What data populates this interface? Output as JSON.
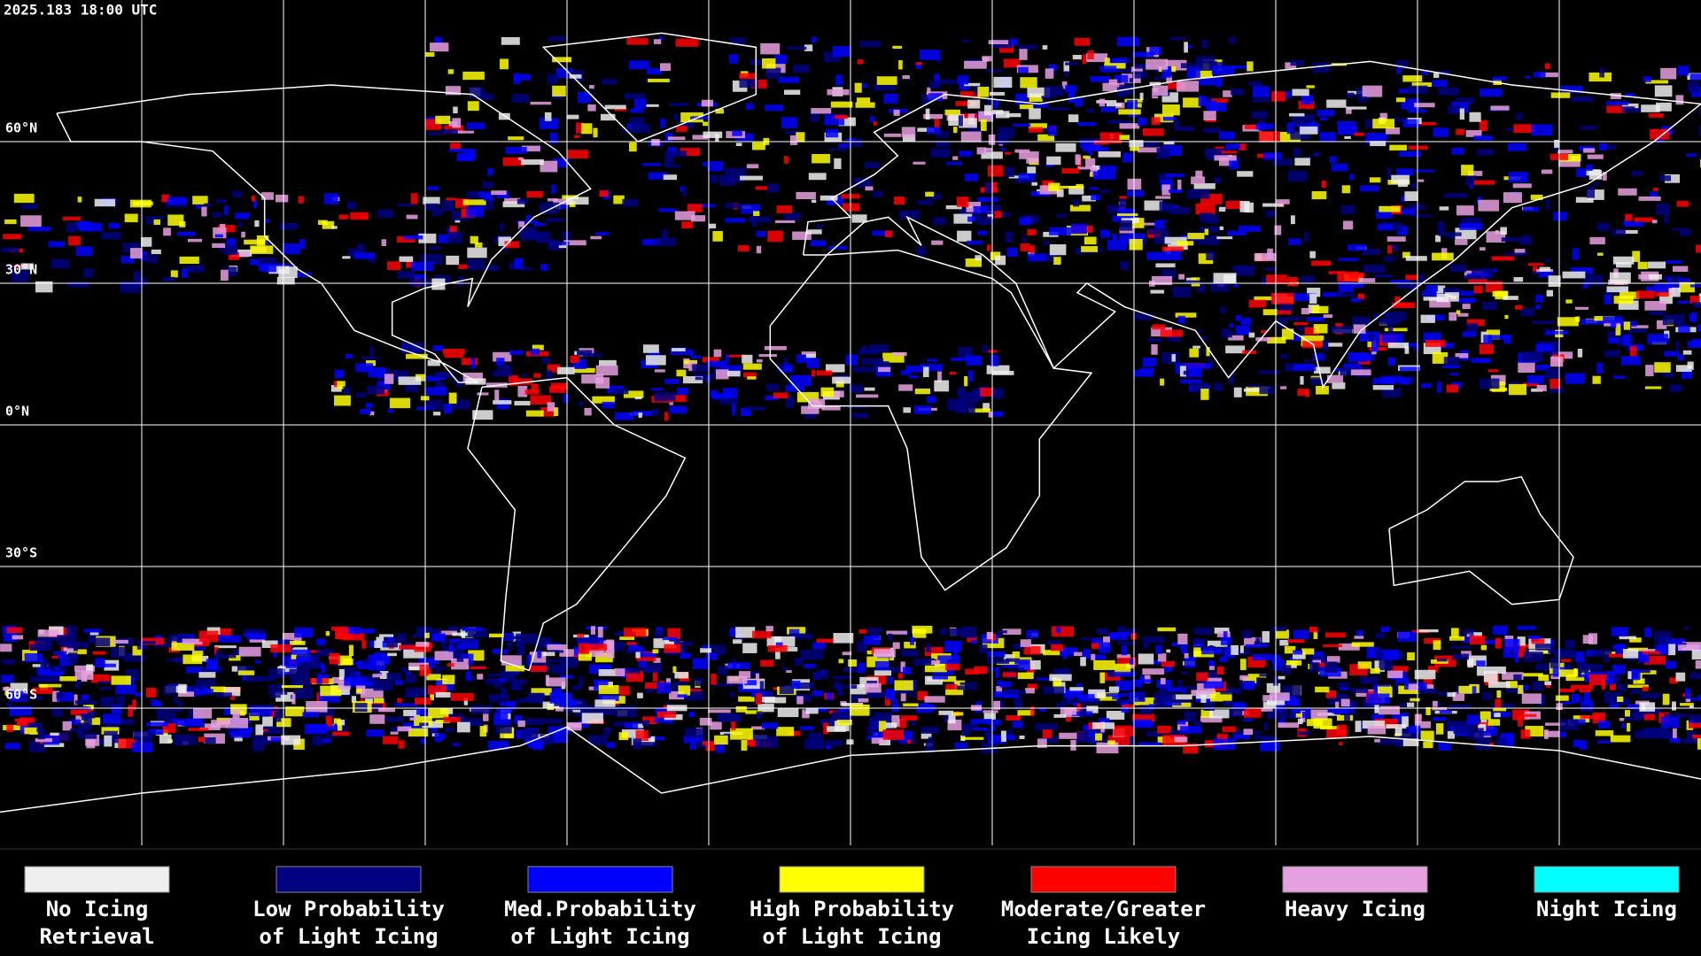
{
  "header": {
    "title": "2025.183 18:00 UTC"
  },
  "latitude_labels": [
    "60°N",
    "30°N",
    "0°N",
    "30°S",
    "60°S"
  ],
  "legend": [
    {
      "color": "#efefef",
      "lines": [
        "No Icing",
        "Retrieval"
      ]
    },
    {
      "color": "#000080",
      "lines": [
        "Low Probability",
        "of Light Icing"
      ]
    },
    {
      "color": "#0000ff",
      "lines": [
        "Med.Probability",
        "of Light Icing"
      ]
    },
    {
      "color": "#ffff00",
      "lines": [
        "High Probability",
        "of Light Icing"
      ]
    },
    {
      "color": "#ff0000",
      "lines": [
        "Moderate/Greater",
        "Icing Likely"
      ]
    },
    {
      "color": "#e6a0e0",
      "lines": [
        "Heavy Icing"
      ]
    },
    {
      "color": "#00ffff",
      "lines": [
        "Night Icing"
      ]
    }
  ]
}
